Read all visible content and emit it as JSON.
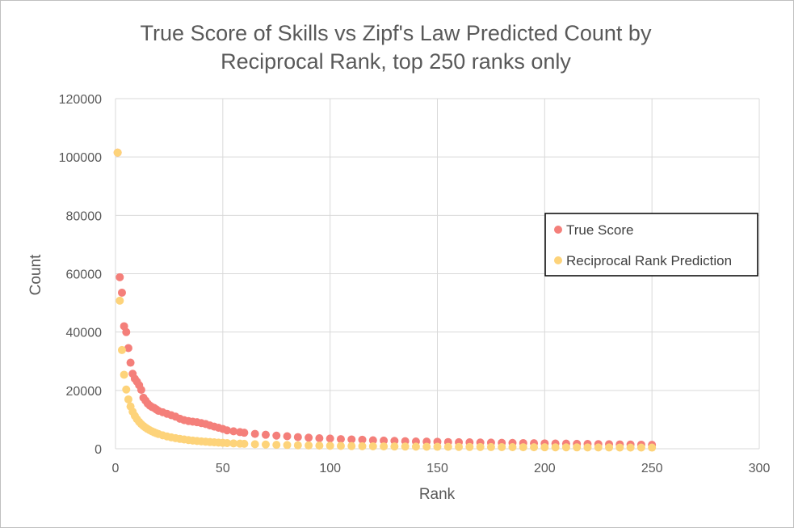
{
  "chart_data": {
    "type": "scatter",
    "title_lines": [
      "True Score of Skills vs Zipf's Law Predicted Count by",
      "Reciprocal Rank, top 250 ranks only"
    ],
    "xlabel": "Rank",
    "ylabel": "Count",
    "xlim": [
      0,
      300
    ],
    "ylim": [
      0,
      120000
    ],
    "x_ticks": [
      0,
      50,
      100,
      150,
      200,
      250,
      300
    ],
    "y_ticks": [
      0,
      20000,
      40000,
      60000,
      80000,
      100000,
      120000
    ],
    "grid": true,
    "legend_position": "right",
    "series": [
      {
        "name": "True Score",
        "color": "#f47f7a",
        "x": [
          1,
          2,
          3,
          4,
          5,
          6,
          7,
          8,
          9,
          10,
          11,
          12,
          13,
          14,
          15,
          16,
          17,
          18,
          19,
          20,
          22,
          24,
          26,
          28,
          30,
          32,
          34,
          36,
          38,
          40,
          42,
          44,
          46,
          48,
          50,
          52,
          55,
          58,
          60,
          65,
          70,
          75,
          80,
          85,
          90,
          95,
          100,
          105,
          110,
          115,
          120,
          125,
          130,
          135,
          140,
          145,
          150,
          155,
          160,
          165,
          170,
          175,
          180,
          185,
          190,
          195,
          200,
          205,
          210,
          215,
          220,
          225,
          230,
          235,
          240,
          245,
          250
        ],
        "y": [
          101500,
          58800,
          53500,
          42000,
          40000,
          34500,
          29500,
          25700,
          24000,
          23000,
          21800,
          20200,
          17500,
          16500,
          15500,
          14800,
          14300,
          14000,
          13500,
          13000,
          12500,
          12000,
          11500,
          11000,
          10300,
          9800,
          9500,
          9300,
          9100,
          8800,
          8500,
          8000,
          7600,
          7200,
          6800,
          6300,
          6000,
          5700,
          5500,
          5100,
          4800,
          4500,
          4300,
          4000,
          3800,
          3600,
          3500,
          3300,
          3200,
          3100,
          2900,
          2800,
          2700,
          2600,
          2500,
          2450,
          2400,
          2300,
          2250,
          2200,
          2150,
          2100,
          2050,
          2000,
          1950,
          1900,
          1850,
          1800,
          1750,
          1700,
          1650,
          1600,
          1550,
          1500,
          1450,
          1400,
          1350
        ]
      },
      {
        "name": "Reciprocal Rank Prediction",
        "color": "#fdd37a",
        "x": [
          1,
          2,
          3,
          4,
          5,
          6,
          7,
          8,
          9,
          10,
          11,
          12,
          13,
          14,
          15,
          16,
          17,
          18,
          19,
          20,
          22,
          24,
          26,
          28,
          30,
          32,
          34,
          36,
          38,
          40,
          42,
          44,
          46,
          48,
          50,
          52,
          55,
          58,
          60,
          65,
          70,
          75,
          80,
          85,
          90,
          95,
          100,
          105,
          110,
          115,
          120,
          125,
          130,
          135,
          140,
          145,
          150,
          155,
          160,
          165,
          170,
          175,
          180,
          185,
          190,
          195,
          200,
          205,
          210,
          215,
          220,
          225,
          230,
          235,
          240,
          245,
          250
        ],
        "y": [
          101500,
          50750,
          33833,
          25375,
          20300,
          16917,
          14500,
          12688,
          11278,
          10150,
          9227,
          8458,
          7808,
          7250,
          6767,
          6344,
          5971,
          5639,
          5342,
          5075,
          4614,
          4229,
          3904,
          3625,
          3383,
          3172,
          2985,
          2819,
          2671,
          2538,
          2417,
          2307,
          2207,
          2115,
          2030,
          1952,
          1845,
          1750,
          1692,
          1562,
          1450,
          1353,
          1269,
          1194,
          1128,
          1068,
          1015,
          967,
          923,
          883,
          846,
          812,
          781,
          752,
          725,
          700,
          677,
          655,
          634,
          615,
          597,
          580,
          564,
          549,
          534,
          521,
          508,
          495,
          483,
          472,
          461,
          451,
          441,
          432,
          423,
          414,
          406
        ]
      }
    ]
  }
}
